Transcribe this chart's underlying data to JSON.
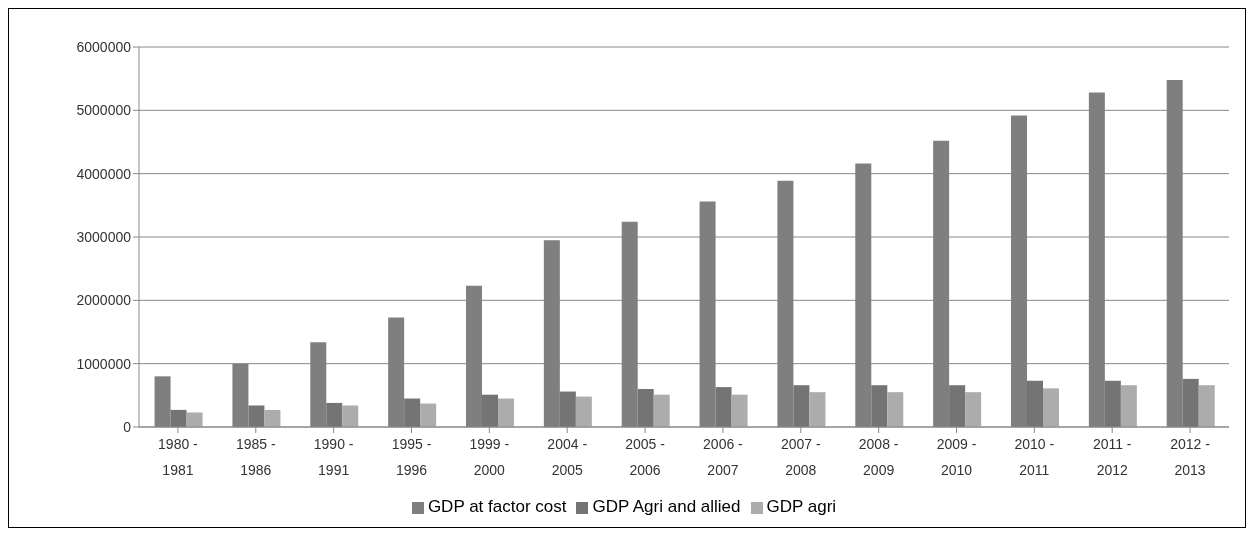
{
  "chart_data": {
    "type": "bar",
    "categories": [
      "1980 - 1981",
      "1985 - 1986",
      "1990 - 1991",
      "1995 - 1996",
      "1999 - 2000",
      "2004 - 2005",
      "2005 - 2006",
      "2006 - 2007",
      "2007 - 2008",
      "2008 - 2009",
      "2009 - 2010",
      "2010 - 2011",
      "2011 - 2012",
      "2012 - 2013"
    ],
    "series": [
      {
        "name": "GDP at factor cost",
        "color": "#7f7f7f",
        "values": [
          800000,
          1000000,
          1340000,
          1730000,
          2230000,
          2950000,
          3240000,
          3560000,
          3890000,
          4160000,
          4520000,
          4920000,
          5280000,
          5480000
        ]
      },
      {
        "name": "GDP Agri and allied",
        "color": "#747474",
        "values": [
          270000,
          340000,
          380000,
          450000,
          510000,
          560000,
          600000,
          630000,
          660000,
          660000,
          660000,
          730000,
          730000,
          760000
        ]
      },
      {
        "name": "GDP agri",
        "color": "#acacac",
        "values": [
          230000,
          270000,
          340000,
          370000,
          450000,
          480000,
          510000,
          510000,
          550000,
          550000,
          550000,
          610000,
          660000,
          660000
        ]
      }
    ],
    "ylim": [
      0,
      6000000
    ],
    "yticks": [
      0,
      1000000,
      2000000,
      3000000,
      4000000,
      5000000,
      6000000
    ],
    "grid": "y",
    "legend": "bottom"
  }
}
